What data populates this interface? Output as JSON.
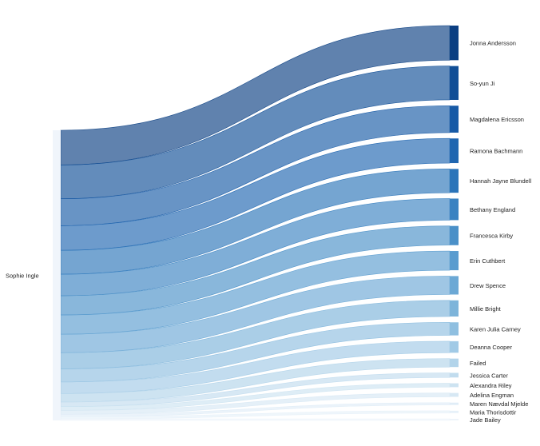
{
  "chart_data": {
    "type": "sankey",
    "source": {
      "name": "Sophie Ingle",
      "color": "#f0f5fb"
    },
    "targets": [
      {
        "name": "Jonna Andersson",
        "value": 45,
        "color": "#0b3f82"
      },
      {
        "name": "So-yun Ji",
        "value": 44,
        "color": "#104e96"
      },
      {
        "name": "Magdalena Ericsson",
        "value": 35,
        "color": "#175aa6"
      },
      {
        "name": "Ramona Bachmann",
        "value": 32,
        "color": "#1f66b0"
      },
      {
        "name": "Hannah Jayne Blundell",
        "value": 31,
        "color": "#2b74b9"
      },
      {
        "name": "Bethany England",
        "value": 28,
        "color": "#3a82c1"
      },
      {
        "name": "Francesca Kirby",
        "value": 25,
        "color": "#4a90c8"
      },
      {
        "name": "Erin Cuthbert",
        "value": 25,
        "color": "#5a9ccf"
      },
      {
        "name": "Drew Spence",
        "value": 24,
        "color": "#6ba8d5"
      },
      {
        "name": "Millie Bright",
        "value": 21,
        "color": "#7db4da"
      },
      {
        "name": "Karen Julia Carney",
        "value": 17,
        "color": "#8fbfe0"
      },
      {
        "name": "Deanna Cooper",
        "value": 15,
        "color": "#a1cae6"
      },
      {
        "name": "Failed",
        "value": 11,
        "color": "#b2d4ea"
      },
      {
        "name": "Jessica Carter",
        "value": 6,
        "color": "#c1dcee"
      },
      {
        "name": "Alexandra Riley",
        "value": 5,
        "color": "#cde3f1"
      },
      {
        "name": "Adelina Engman",
        "value": 5,
        "color": "#d7e8f4"
      },
      {
        "name": "Maren Nævdal Mjelde",
        "value": 3,
        "color": "#e0edf7"
      },
      {
        "name": "Maria Thorisdottir",
        "value": 3,
        "color": "#e7f1f9"
      },
      {
        "name": "Jade Bailey",
        "value": 2,
        "color": "#edf4fa"
      }
    ]
  }
}
